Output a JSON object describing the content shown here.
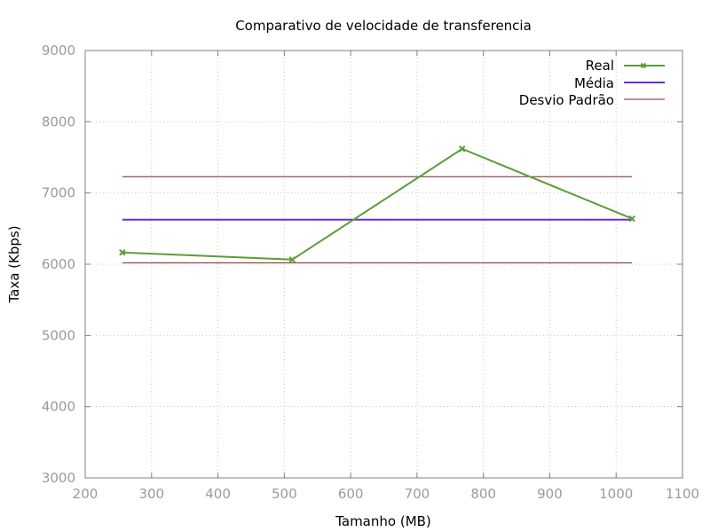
{
  "chart_data": {
    "type": "line",
    "title": "Comparativo de velocidade de transferencia",
    "xlabel": "Tamanho (MB)",
    "ylabel": "Taxa (Kbps)",
    "xlim": [
      200,
      1100
    ],
    "ylim": [
      3000,
      9000
    ],
    "xticks": [
      200,
      300,
      400,
      500,
      600,
      700,
      800,
      900,
      1000,
      1100
    ],
    "yticks": [
      3000,
      4000,
      5000,
      6000,
      7000,
      8000,
      9000
    ],
    "grid": true,
    "legend_position": "top-right",
    "series": [
      {
        "name": "Real",
        "color": "#5a9e32",
        "marker": "x",
        "x": [
          256,
          512,
          768,
          1024
        ],
        "y": [
          6165,
          6065,
          7620,
          6640
        ]
      },
      {
        "name": "Média",
        "color": "#6a2fd8",
        "marker": "none",
        "x": [
          256,
          1024
        ],
        "y": [
          6625,
          6625
        ]
      },
      {
        "name": "Desvio Padrão",
        "color": "#7a2020",
        "marker": "none",
        "bands": true,
        "x": [
          256,
          1024
        ],
        "y_upper": [
          7230,
          7230
        ],
        "y_lower": [
          6020,
          6020
        ]
      }
    ]
  }
}
